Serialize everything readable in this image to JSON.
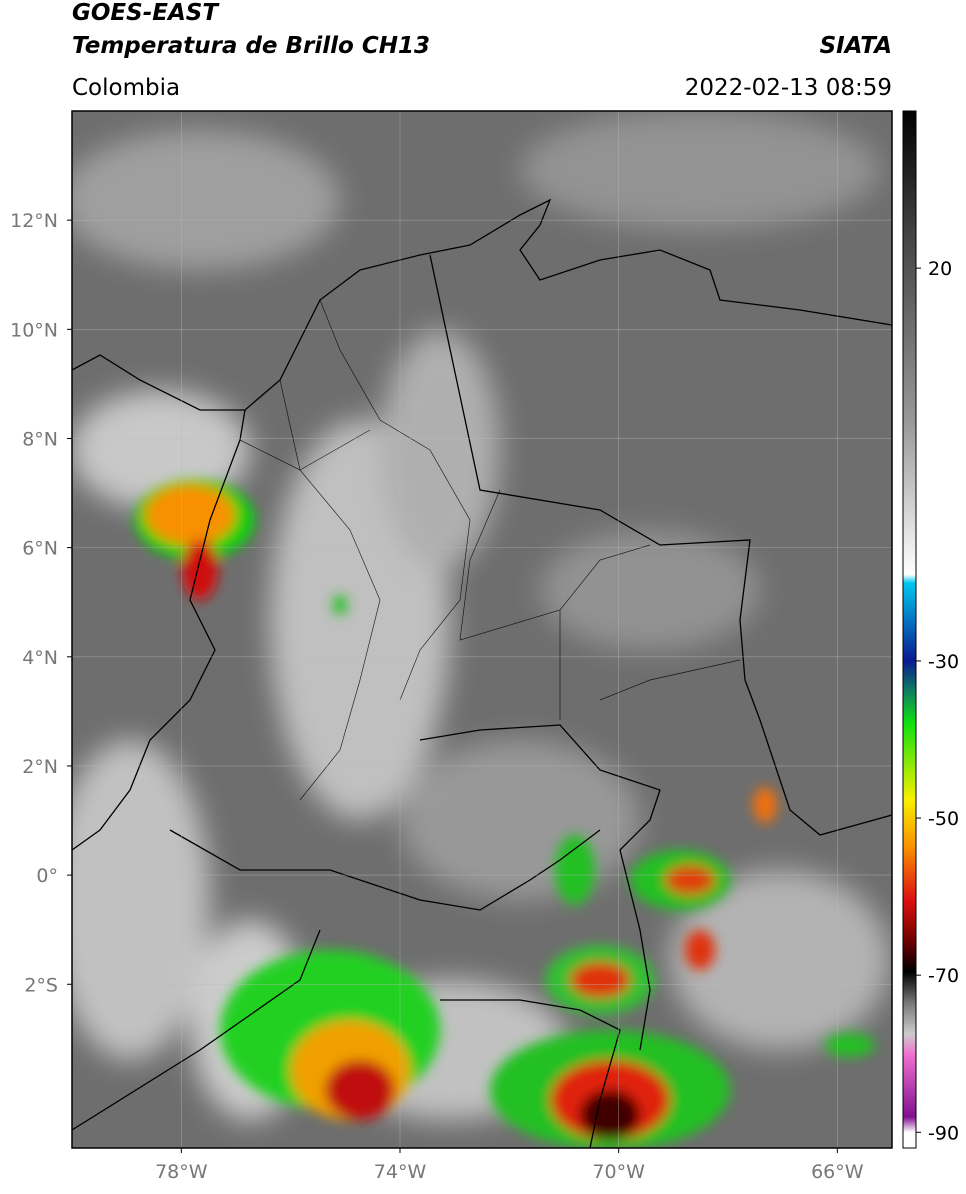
{
  "header": {
    "title": "GOES-EAST",
    "subtitle": "Temperatura de Brillo CH13",
    "source": "SIATA",
    "region": "Colombia",
    "timestamp": "2022-02-13 08:59"
  },
  "map": {
    "lat_range": [
      -5,
      14
    ],
    "lon_range": [
      -80,
      -65
    ],
    "lat_ticks": [
      {
        "value": 12,
        "label": "12°N"
      },
      {
        "value": 10,
        "label": "10°N"
      },
      {
        "value": 8,
        "label": "8°N"
      },
      {
        "value": 6,
        "label": "6°N"
      },
      {
        "value": 4,
        "label": "4°N"
      },
      {
        "value": 2,
        "label": "2°N"
      },
      {
        "value": 0,
        "label": "0°"
      },
      {
        "value": -2,
        "label": "2°S"
      }
    ],
    "lon_ticks": [
      {
        "value": -78,
        "label": "78°W"
      },
      {
        "value": -74,
        "label": "74°W"
      },
      {
        "value": -70,
        "label": "70°W"
      },
      {
        "value": -66,
        "label": "66°W"
      }
    ],
    "grid": true
  },
  "colorbar": {
    "range": [
      -92,
      40
    ],
    "ticks": [
      20,
      -30,
      -50,
      -70,
      -90
    ]
  }
}
